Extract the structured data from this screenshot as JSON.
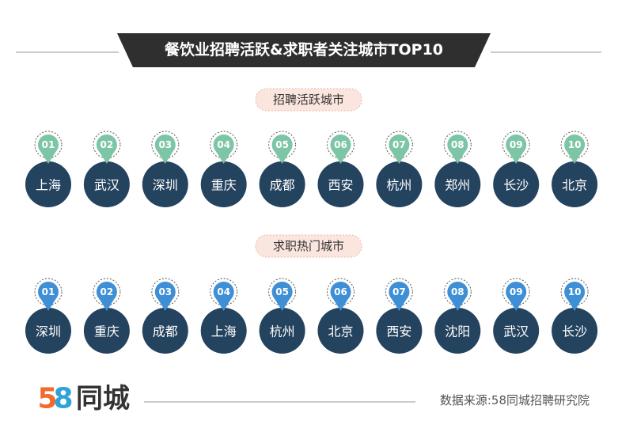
{
  "title": "餐饮业招聘活跃&求职者关注城市TOP10",
  "sections": [
    {
      "label": "招聘活跃城市",
      "items": [
        {
          "rank": "01",
          "city": "上海"
        },
        {
          "rank": "02",
          "city": "武汉"
        },
        {
          "rank": "03",
          "city": "深圳"
        },
        {
          "rank": "04",
          "city": "重庆"
        },
        {
          "rank": "05",
          "city": "成都"
        },
        {
          "rank": "06",
          "city": "西安"
        },
        {
          "rank": "07",
          "city": "杭州"
        },
        {
          "rank": "08",
          "city": "郑州"
        },
        {
          "rank": "09",
          "city": "长沙"
        },
        {
          "rank": "10",
          "city": "北京"
        }
      ]
    },
    {
      "label": "求职热门城市",
      "items": [
        {
          "rank": "01",
          "city": "深圳"
        },
        {
          "rank": "02",
          "city": "重庆"
        },
        {
          "rank": "03",
          "city": "成都"
        },
        {
          "rank": "04",
          "city": "上海"
        },
        {
          "rank": "05",
          "city": "杭州"
        },
        {
          "rank": "06",
          "city": "北京"
        },
        {
          "rank": "07",
          "city": "西安"
        },
        {
          "rank": "08",
          "city": "沈阳"
        },
        {
          "rank": "09",
          "city": "武汉"
        },
        {
          "rank": "10",
          "city": "长沙"
        }
      ]
    }
  ],
  "footer": {
    "logo": [
      "5",
      "8",
      "同城"
    ],
    "source": "数据来源:58同城招聘研究院"
  }
}
